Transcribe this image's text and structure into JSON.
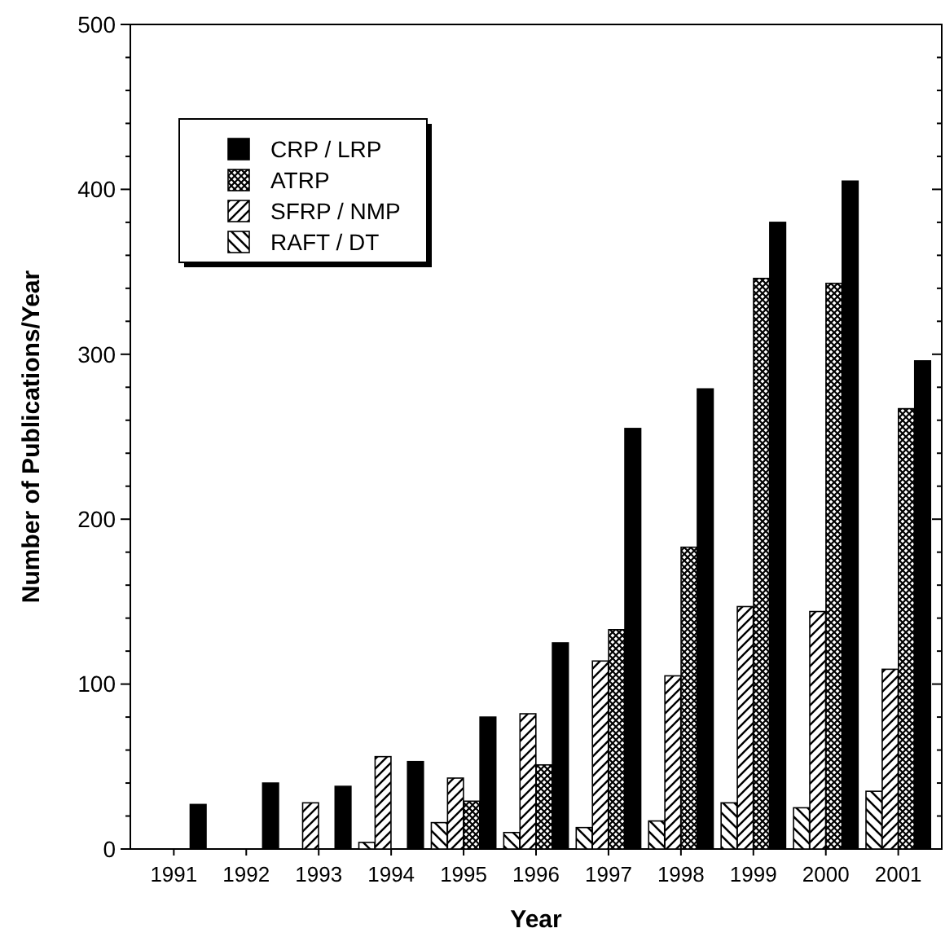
{
  "chart_data": {
    "type": "bar",
    "xlabel": "Year",
    "ylabel": "Number of Publications/Year",
    "categories": [
      "1991",
      "1992",
      "1993",
      "1994",
      "1995",
      "1996",
      "1997",
      "1998",
      "1999",
      "2000",
      "2001"
    ],
    "series": [
      {
        "name": "RAFT / DT",
        "color": "#000000",
        "values": [
          null,
          null,
          null,
          4,
          16,
          10,
          13,
          17,
          28,
          25,
          35
        ]
      },
      {
        "name": "SFRP / NMP",
        "color": "#000000",
        "values": [
          null,
          null,
          28,
          56,
          43,
          82,
          114,
          105,
          147,
          144,
          109
        ]
      },
      {
        "name": "ATRP",
        "color": "#000000",
        "values": [
          null,
          null,
          null,
          null,
          29,
          51,
          133,
          183,
          346,
          343,
          267
        ]
      },
      {
        "name": "CRP / LRP",
        "color": "#000000",
        "values": [
          27,
          40,
          38,
          53,
          80,
          125,
          255,
          279,
          380,
          405,
          296
        ]
      }
    ],
    "ylim": [
      0,
      500
    ],
    "yticks": [
      0,
      100,
      200,
      300,
      400,
      500
    ],
    "legend": "top left"
  }
}
